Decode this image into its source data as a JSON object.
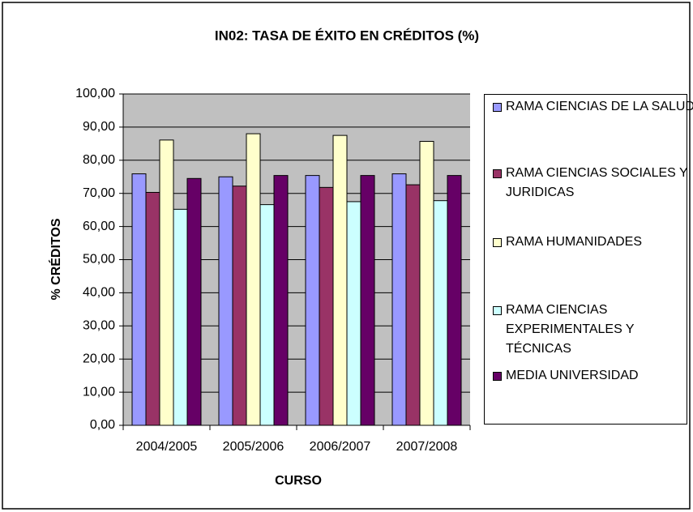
{
  "chart_data": {
    "type": "bar",
    "title": "IN02: TASA DE ÉXITO EN CRÉDITOS (%)",
    "x_label": "CURSO",
    "y_label": "% CRÉDITOS",
    "categories": [
      "2004/2005",
      "2005/2006",
      "2006/2007",
      "2007/2008"
    ],
    "series": [
      {
        "name": "RAMA CIENCIAS DE LA SALUD",
        "color": "#9999ff",
        "values": [
          75.9,
          75.0,
          75.4,
          75.9
        ]
      },
      {
        "name": "RAMA CIENCIAS SOCIALES Y JURIDICAS",
        "color": "#993366",
        "values": [
          70.3,
          72.2,
          71.8,
          72.6
        ]
      },
      {
        "name": "RAMA HUMANIDADES",
        "color": "#ffffcc",
        "values": [
          86.1,
          88.0,
          87.5,
          85.7
        ]
      },
      {
        "name": "RAMA CIENCIAS EXPERIMENTALES Y TÉCNICAS",
        "color": "#ccffff",
        "values": [
          65.2,
          66.6,
          67.5,
          67.8
        ]
      },
      {
        "name": "MEDIA UNIVERSIDAD",
        "color": "#660066",
        "values": [
          74.5,
          75.4,
          75.4,
          75.4
        ]
      }
    ],
    "ylim": [
      0,
      100
    ],
    "yticks": [
      {
        "value": 0,
        "label": "0,00"
      },
      {
        "value": 10,
        "label": "10,00"
      },
      {
        "value": 20,
        "label": "20,00"
      },
      {
        "value": 30,
        "label": "30,00"
      },
      {
        "value": 40,
        "label": "40,00"
      },
      {
        "value": 50,
        "label": "50,00"
      },
      {
        "value": 60,
        "label": "60,00"
      },
      {
        "value": 70,
        "label": "70,00"
      },
      {
        "value": 80,
        "label": "80,00"
      },
      {
        "value": 90,
        "label": "90,00"
      },
      {
        "value": 100,
        "label": "100,00"
      }
    ],
    "grid": true,
    "plot_background": "#c0c0c0",
    "legend": "right"
  }
}
